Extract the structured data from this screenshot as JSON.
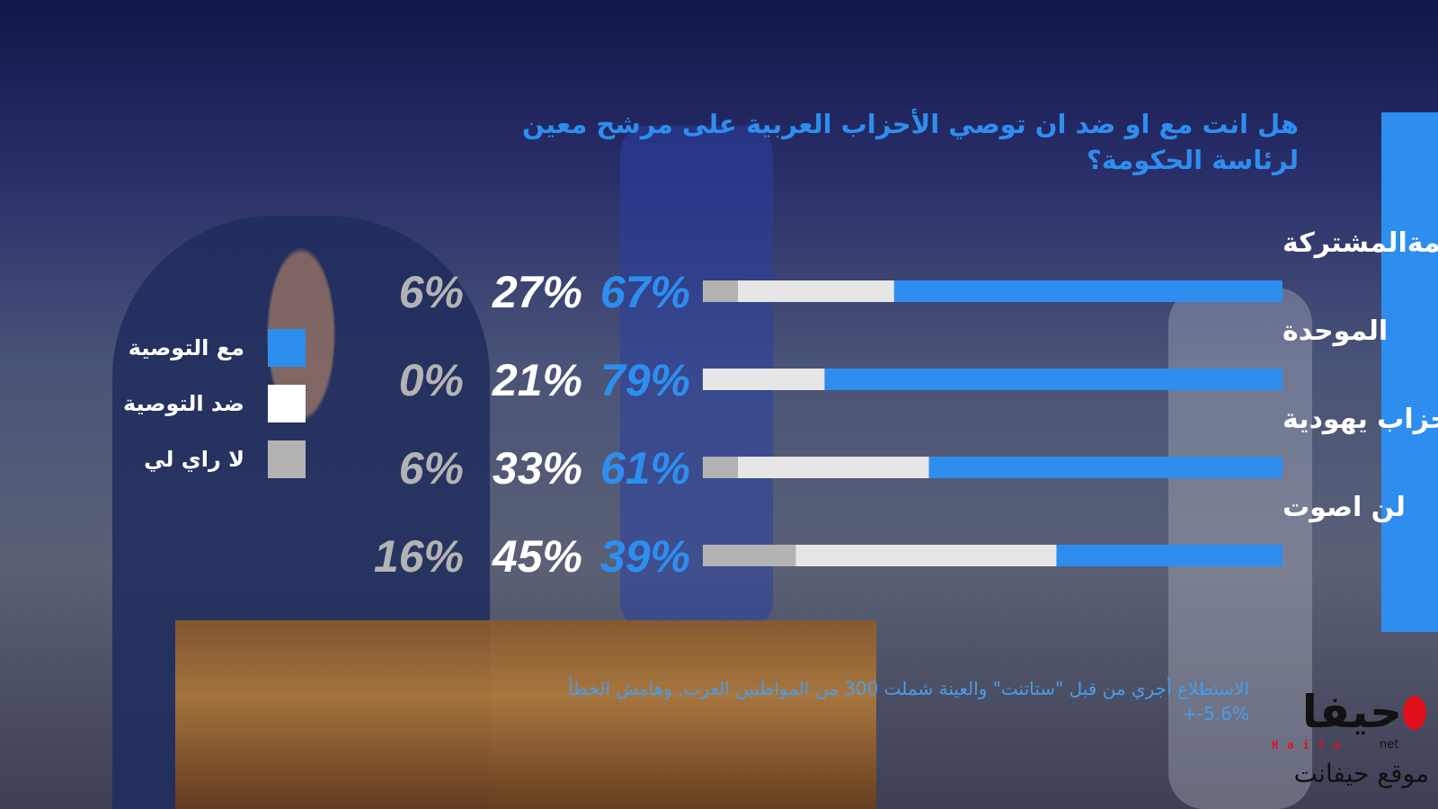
{
  "chart_data": {
    "type": "bar",
    "orientation": "horizontal-stacked",
    "title": "هل انت مع او ضد ان توصي الأحزاب العربية على مرشح معين لرئاسة الحكومة؟",
    "categories": [
      "القائمةالمشتركة",
      "الموحدة",
      "احزاب يهودية",
      "لن اصوت"
    ],
    "series": [
      {
        "name": "مع التوصية",
        "color": "#2d8ef0",
        "values": [
          67,
          79,
          61,
          39
        ]
      },
      {
        "name": "ضد التوصية",
        "color": "#e6e6e6",
        "values": [
          27,
          21,
          33,
          45
        ]
      },
      {
        "name": "لا راي لي",
        "color": "#b3b3b3",
        "values": [
          6,
          0,
          6,
          16
        ]
      }
    ],
    "value_suffix": "%",
    "xlim": [
      0,
      100
    ],
    "grid": false,
    "legend": "left"
  },
  "footnote": "الاستطلاع أجري من قبل \"ستاتنت\" والعينة شملت 300 من المواطنين العرب, وهامش الخطأ %5.6-+",
  "logo": {
    "main": "حيفا",
    "latin": "Haifa",
    "net": "net",
    "sub": "موقع حيفانت"
  }
}
